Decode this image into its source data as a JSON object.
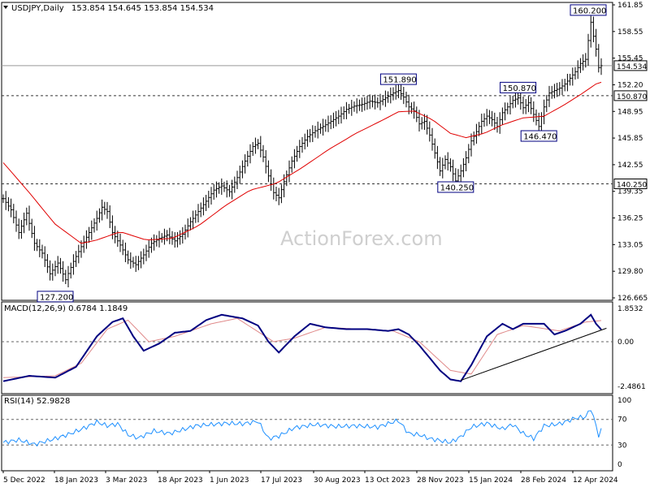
{
  "chart_data": [
    {
      "type": "candlestick-ohlc-bars",
      "title": "USDJPY,Daily",
      "ohlc_header": "153.854 154.645 153.854 154.534",
      "watermark": "ActionForex.com",
      "y_ticks": [
        "161.85",
        "158.55",
        "155.45",
        "152.20",
        "148.95",
        "145.85",
        "142.55",
        "139.35",
        "136.25",
        "133.05",
        "129.80",
        "126.665"
      ],
      "y_range": [
        126.665,
        161.85
      ],
      "x_ticks": [
        "5 Dec 2022",
        "18 Jan 2023",
        "3 Mar 2023",
        "18 Apr 2023",
        "1 Jun 2023",
        "17 Jul 2023",
        "30 Aug 2023",
        "13 Oct 2023",
        "28 Nov 2023",
        "15 Jan 2024",
        "28 Feb 2024",
        "12 Apr 2024"
      ],
      "last_price_label": "154.534",
      "horizontal_levels": [
        {
          "value": 150.87,
          "label": "150.870",
          "style": "dashed"
        },
        {
          "value": 140.25,
          "label": "140.250",
          "style": "dashed"
        }
      ],
      "annotations": [
        {
          "label": "127.200",
          "value": 127.2
        },
        {
          "label": "151.890",
          "value": 151.89
        },
        {
          "label": "140.250",
          "value": 140.25
        },
        {
          "label": "150.870",
          "value": 150.87
        },
        {
          "label": "146.470",
          "value": 146.47
        },
        {
          "label": "160.200",
          "value": 160.2
        }
      ],
      "price_path": [
        [
          0,
          138.5
        ],
        [
          3,
          137.2
        ],
        [
          6,
          134.5
        ],
        [
          9,
          136.8
        ],
        [
          12,
          133.2
        ],
        [
          15,
          132.0
        ],
        [
          18,
          129.5
        ],
        [
          21,
          130.8
        ],
        [
          24,
          128.8
        ],
        [
          27,
          131.0
        ],
        [
          30,
          132.8
        ],
        [
          33,
          134.5
        ],
        [
          36,
          136.2
        ],
        [
          38,
          137.5
        ],
        [
          40,
          137.0
        ],
        [
          42,
          134.5
        ],
        [
          45,
          133.0
        ],
        [
          48,
          131.2
        ],
        [
          51,
          130.6
        ],
        [
          54,
          131.8
        ],
        [
          57,
          133.2
        ],
        [
          60,
          133.8
        ],
        [
          63,
          134.2
        ],
        [
          66,
          133.5
        ],
        [
          69,
          134.3
        ],
        [
          72,
          135.8
        ],
        [
          75,
          137.0
        ],
        [
          78,
          138.2
        ],
        [
          81,
          139.5
        ],
        [
          84,
          140.0
        ],
        [
          87,
          139.3
        ],
        [
          90,
          141.0
        ],
        [
          93,
          143.0
        ],
        [
          96,
          144.8
        ],
        [
          98,
          145.2
        ],
        [
          100,
          143.5
        ],
        [
          102,
          141.2
        ],
        [
          104,
          139.2
        ],
        [
          106,
          138.6
        ],
        [
          108,
          140.5
        ],
        [
          111,
          143.0
        ],
        [
          114,
          144.8
        ],
        [
          117,
          146.0
        ],
        [
          120,
          146.7
        ],
        [
          123,
          147.2
        ],
        [
          126,
          147.8
        ],
        [
          129,
          148.4
        ],
        [
          132,
          149.2
        ],
        [
          135,
          149.6
        ],
        [
          138,
          149.8
        ],
        [
          141,
          150.2
        ],
        [
          144,
          150.0
        ],
        [
          147,
          150.6
        ],
        [
          150,
          151.2
        ],
        [
          152,
          151.5
        ],
        [
          154,
          150.7
        ],
        [
          156,
          149.5
        ],
        [
          158,
          149.0
        ],
        [
          160,
          147.5
        ],
        [
          162,
          147.8
        ],
        [
          164,
          146.2
        ],
        [
          166,
          144.0
        ],
        [
          168,
          141.8
        ],
        [
          170,
          143.2
        ],
        [
          172,
          142.3
        ],
        [
          174,
          140.6
        ],
        [
          176,
          141.8
        ],
        [
          178,
          143.4
        ],
        [
          180,
          145.5
        ],
        [
          182,
          146.6
        ],
        [
          184,
          147.8
        ],
        [
          186,
          148.4
        ],
        [
          188,
          148.0
        ],
        [
          190,
          147.2
        ],
        [
          192,
          148.8
        ],
        [
          194,
          149.5
        ],
        [
          196,
          150.3
        ],
        [
          198,
          150.6
        ],
        [
          200,
          149.4
        ],
        [
          202,
          150.0
        ],
        [
          204,
          148.6
        ],
        [
          206,
          147.2
        ],
        [
          208,
          149.5
        ],
        [
          210,
          151.2
        ],
        [
          212,
          151.5
        ],
        [
          214,
          151.8
        ],
        [
          216,
          152.3
        ],
        [
          218,
          153.0
        ],
        [
          220,
          153.8
        ],
        [
          222,
          154.8
        ],
        [
          224,
          155.3
        ],
        [
          225,
          157.5
        ],
        [
          226,
          159.7
        ],
        [
          227,
          158.0
        ],
        [
          228,
          156.5
        ],
        [
          229,
          154.3
        ],
        [
          230,
          154.53
        ]
      ],
      "sma_path": [
        [
          0,
          142.8
        ],
        [
          10,
          139.2
        ],
        [
          20,
          135.5
        ],
        [
          30,
          133.2
        ],
        [
          36,
          133.6
        ],
        [
          45,
          134.6
        ],
        [
          55,
          133.6
        ],
        [
          65,
          133.8
        ],
        [
          75,
          135.3
        ],
        [
          85,
          137.6
        ],
        [
          95,
          139.5
        ],
        [
          105,
          140.3
        ],
        [
          115,
          142.2
        ],
        [
          125,
          144.4
        ],
        [
          135,
          146.3
        ],
        [
          145,
          147.8
        ],
        [
          152,
          148.9
        ],
        [
          158,
          149.0
        ],
        [
          165,
          148.0
        ],
        [
          172,
          146.4
        ],
        [
          178,
          145.9
        ],
        [
          185,
          146.4
        ],
        [
          192,
          147.4
        ],
        [
          200,
          148.2
        ],
        [
          208,
          148.4
        ],
        [
          215,
          149.6
        ],
        [
          222,
          151.0
        ],
        [
          228,
          152.3
        ],
        [
          230,
          152.5
        ]
      ]
    },
    {
      "type": "line",
      "title": "MACD(12,26,9) 0.6784 1.1849",
      "y_ticks": [
        "1.8532",
        "0.00",
        "-2.4861"
      ],
      "y_range": [
        -2.4861,
        1.8532
      ],
      "series": [
        {
          "values": [
            [
              0,
              -2.2
            ],
            [
              10,
              -1.9
            ],
            [
              20,
              -2.0
            ],
            [
              28,
              -1.4
            ],
            [
              36,
              0.3
            ],
            [
              42,
              1.1
            ],
            [
              46,
              1.3
            ],
            [
              50,
              0.3
            ],
            [
              54,
              -0.5
            ],
            [
              60,
              -0.1
            ],
            [
              66,
              0.5
            ],
            [
              72,
              0.6
            ],
            [
              78,
              1.2
            ],
            [
              84,
              1.5
            ],
            [
              92,
              1.3
            ],
            [
              98,
              0.9
            ],
            [
              102,
              0.0
            ],
            [
              106,
              -0.6
            ],
            [
              112,
              0.3
            ],
            [
              118,
              1.0
            ],
            [
              124,
              0.8
            ],
            [
              132,
              0.7
            ],
            [
              140,
              0.7
            ],
            [
              148,
              0.6
            ],
            [
              152,
              0.7
            ],
            [
              156,
              0.4
            ],
            [
              160,
              -0.2
            ],
            [
              164,
              -0.9
            ],
            [
              168,
              -1.6
            ],
            [
              172,
              -2.1
            ],
            [
              176,
              -2.2
            ],
            [
              180,
              -1.3
            ],
            [
              186,
              0.3
            ],
            [
              192,
              1.0
            ],
            [
              196,
              0.7
            ],
            [
              200,
              1.0
            ],
            [
              208,
              1.0
            ],
            [
              212,
              0.4
            ],
            [
              216,
              0.6
            ],
            [
              222,
              1.0
            ],
            [
              226,
              1.5
            ],
            [
              228,
              1.0
            ],
            [
              230,
              0.68
            ]
          ]
        },
        {
          "values": [
            [
              0,
              -2.0
            ],
            [
              20,
              -1.9
            ],
            [
              30,
              -1.2
            ],
            [
              40,
              0.7
            ],
            [
              48,
              1.2
            ],
            [
              56,
              0.0
            ],
            [
              66,
              0.3
            ],
            [
              80,
              1.0
            ],
            [
              90,
              1.3
            ],
            [
              104,
              0.0
            ],
            [
              112,
              0.2
            ],
            [
              124,
              0.8
            ],
            [
              150,
              0.6
            ],
            [
              160,
              0.0
            ],
            [
              172,
              -1.6
            ],
            [
              180,
              -1.8
            ],
            [
              190,
              0.4
            ],
            [
              200,
              0.9
            ],
            [
              214,
              0.6
            ],
            [
              224,
              1.1
            ],
            [
              230,
              1.18
            ]
          ]
        }
      ]
    },
    {
      "type": "line",
      "title": "RSI(14) 52.9828",
      "y_ticks": [
        "100",
        "70",
        "30",
        "0"
      ],
      "y_range": [
        0,
        100
      ],
      "series": [
        {
          "values": [
            [
              0,
              34
            ],
            [
              6,
              38
            ],
            [
              12,
              31
            ],
            [
              20,
              40
            ],
            [
              26,
              48
            ],
            [
              32,
              58
            ],
            [
              36,
              66
            ],
            [
              40,
              60
            ],
            [
              44,
              63
            ],
            [
              48,
              46
            ],
            [
              52,
              41
            ],
            [
              58,
              52
            ],
            [
              64,
              48
            ],
            [
              70,
              55
            ],
            [
              74,
              60
            ],
            [
              80,
              62
            ],
            [
              86,
              64
            ],
            [
              92,
              63
            ],
            [
              98,
              67
            ],
            [
              102,
              40
            ],
            [
              106,
              44
            ],
            [
              112,
              57
            ],
            [
              120,
              62
            ],
            [
              128,
              59
            ],
            [
              136,
              60
            ],
            [
              144,
              58
            ],
            [
              150,
              66
            ],
            [
              152,
              68
            ],
            [
              156,
              48
            ],
            [
              160,
              46
            ],
            [
              164,
              40
            ],
            [
              168,
              37
            ],
            [
              172,
              34
            ],
            [
              176,
              43
            ],
            [
              180,
              58
            ],
            [
              186,
              64
            ],
            [
              192,
              55
            ],
            [
              196,
              62
            ],
            [
              200,
              48
            ],
            [
              204,
              40
            ],
            [
              208,
              60
            ],
            [
              214,
              63
            ],
            [
              220,
              72
            ],
            [
              224,
              74
            ],
            [
              226,
              87
            ],
            [
              228,
              60
            ],
            [
              229,
              45
            ],
            [
              230,
              52.98
            ]
          ]
        }
      ]
    }
  ]
}
